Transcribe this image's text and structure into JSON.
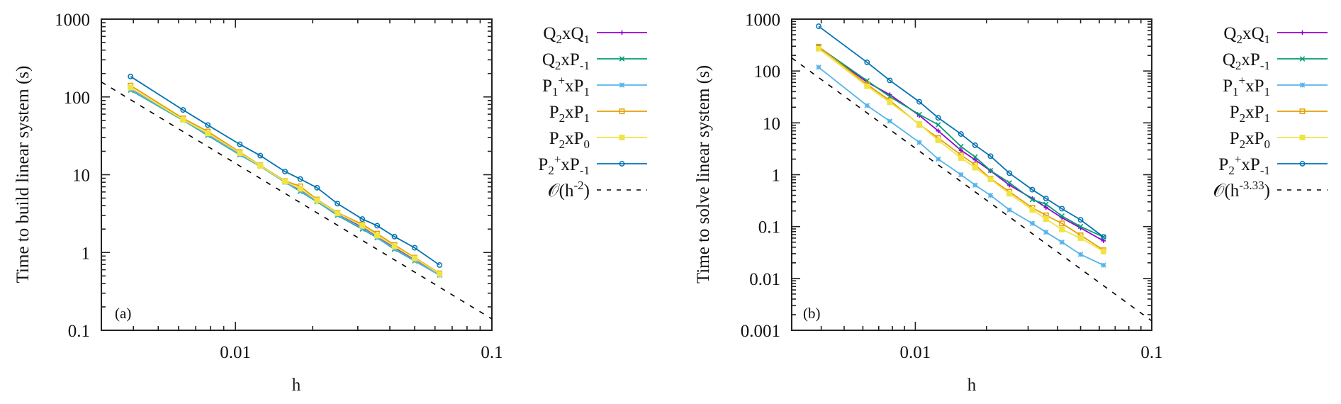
{
  "chart_data": [
    {
      "type": "line",
      "panel_tag": "(a)",
      "title": "",
      "xlabel": "h",
      "ylabel": "Time to build linear system (s)",
      "xscale": "log",
      "yscale": "log",
      "xlim": [
        0.003,
        0.1
      ],
      "ylim": [
        0.1,
        1000
      ],
      "x_ticks": [
        {
          "value": 0.01,
          "label": "0.01"
        },
        {
          "value": 0.1,
          "label": "0.1"
        }
      ],
      "y_ticks": [
        {
          "value": 0.1,
          "label": "0.1"
        },
        {
          "value": 1,
          "label": "1"
        },
        {
          "value": 10,
          "label": "10"
        },
        {
          "value": 100,
          "label": "100"
        },
        {
          "value": 1000,
          "label": "1000"
        }
      ],
      "grid": false,
      "legend_position": "outside-right",
      "x": [
        0.0039,
        0.00625,
        0.0078,
        0.0104,
        0.0125,
        0.0156,
        0.0179,
        0.0208,
        0.025,
        0.03125,
        0.0357,
        0.0417,
        0.05,
        0.0625
      ],
      "series": [
        {
          "name": "Q2xQ1",
          "label_parts": [
            [
              "Q",
              "n"
            ],
            [
              "2",
              "sub"
            ],
            [
              "xQ",
              "n"
            ],
            [
              "1",
              "sub"
            ]
          ],
          "color": "#9400d3",
          "marker": "plus",
          "values": [
            125,
            51,
            33,
            18.5,
            13,
            8.1,
            6.3,
            4.6,
            3.1,
            2.1,
            1.6,
            1.15,
            0.8,
            0.52
          ]
        },
        {
          "name": "Q2xP-1",
          "label_parts": [
            [
              "Q",
              "n"
            ],
            [
              "2",
              "sub"
            ],
            [
              "xP",
              "n"
            ],
            [
              "-1",
              "sub"
            ]
          ],
          "color": "#009e73",
          "marker": "cross",
          "values": [
            122,
            50,
            32,
            18,
            12.8,
            8.0,
            6.1,
            4.5,
            3.0,
            2.0,
            1.55,
            1.1,
            0.78,
            0.51
          ]
        },
        {
          "name": "P1+xP1",
          "label_parts": [
            [
              "P",
              "n"
            ],
            [
              "1",
              "sub"
            ],
            [
              "+",
              "sup"
            ],
            [
              "xP",
              "n"
            ],
            [
              "1",
              "sub"
            ]
          ],
          "color": "#56b4e9",
          "marker": "star",
          "values": [
            124,
            50.5,
            32.5,
            18.2,
            12.9,
            8.0,
            6.2,
            4.55,
            3.05,
            2.05,
            1.57,
            1.12,
            0.79,
            0.51
          ]
        },
        {
          "name": "P2xP1",
          "label_parts": [
            [
              "P",
              "n"
            ],
            [
              "2",
              "sub"
            ],
            [
              "xP",
              "n"
            ],
            [
              "1",
              "sub"
            ]
          ],
          "color": "#e69f00",
          "marker": "square-open",
          "values": [
            140,
            53,
            36,
            19.5,
            13.2,
            8.3,
            7.1,
            4.8,
            3.25,
            2.3,
            1.75,
            1.25,
            0.86,
            0.54
          ]
        },
        {
          "name": "P2xP0",
          "label_parts": [
            [
              "P",
              "n"
            ],
            [
              "2",
              "sub"
            ],
            [
              "xP",
              "n"
            ],
            [
              "0",
              "sub"
            ]
          ],
          "color": "#f0e442",
          "marker": "square-filled",
          "values": [
            132,
            51,
            34,
            19,
            13,
            8.2,
            6.6,
            4.7,
            3.2,
            2.2,
            1.65,
            1.2,
            0.84,
            0.53
          ]
        },
        {
          "name": "P2+xP-1",
          "label_parts": [
            [
              "P",
              "n"
            ],
            [
              "2",
              "sub"
            ],
            [
              "+",
              "sup"
            ],
            [
              "xP",
              "n"
            ],
            [
              "-1",
              "sub"
            ]
          ],
          "color": "#0072b2",
          "marker": "circle-open",
          "values": [
            183,
            68,
            43.5,
            24.6,
            17.6,
            11.0,
            8.8,
            6.8,
            4.25,
            2.69,
            2.21,
            1.6,
            1.15,
            0.69
          ]
        }
      ],
      "reference": {
        "name": "O(h^-2)",
        "label_parts": [
          [
            "𝒪",
            "n"
          ],
          [
            "(h",
            "n"
          ],
          [
            "-2",
            "sup"
          ],
          [
            ")",
            "n"
          ]
        ],
        "exponent": -2,
        "coefficient": 0.0014,
        "color": "#000000",
        "style": "dashed"
      }
    },
    {
      "type": "line",
      "panel_tag": "(b)",
      "title": "",
      "xlabel": "h",
      "ylabel": "Time to solve linear system (s)",
      "xscale": "log",
      "yscale": "log",
      "xlim": [
        0.003,
        0.1
      ],
      "ylim": [
        0.001,
        1000
      ],
      "x_ticks": [
        {
          "value": 0.01,
          "label": "0.01"
        },
        {
          "value": 0.1,
          "label": "0.1"
        }
      ],
      "y_ticks": [
        {
          "value": 0.001,
          "label": "0.001"
        },
        {
          "value": 0.01,
          "label": "0.01"
        },
        {
          "value": 0.1,
          "label": "0.1"
        },
        {
          "value": 1,
          "label": "1"
        },
        {
          "value": 10,
          "label": "10"
        },
        {
          "value": 100,
          "label": "100"
        },
        {
          "value": 1000,
          "label": "1000"
        }
      ],
      "grid": false,
      "legend_position": "outside-right",
      "x": [
        0.0039,
        0.00625,
        0.0078,
        0.0104,
        0.0125,
        0.0156,
        0.0179,
        0.0208,
        0.025,
        0.03125,
        0.0357,
        0.0417,
        0.05,
        0.0625
      ],
      "series": [
        {
          "name": "Q2xQ1",
          "label_parts": [
            [
              "Q",
              "n"
            ],
            [
              "2",
              "sub"
            ],
            [
              "xQ",
              "n"
            ],
            [
              "1",
              "sub"
            ]
          ],
          "color": "#9400d3",
          "marker": "plus",
          "values": [
            288,
            61,
            35,
            13.9,
            7.0,
            2.96,
            1.94,
            1.19,
            0.63,
            0.348,
            0.234,
            0.148,
            0.094,
            0.053
          ]
        },
        {
          "name": "Q2xP-1",
          "label_parts": [
            [
              "Q",
              "n"
            ],
            [
              "2",
              "sub"
            ],
            [
              "xP",
              "n"
            ],
            [
              "-1",
              "sub"
            ]
          ],
          "color": "#009e73",
          "marker": "cross",
          "values": [
            290,
            65,
            32,
            14.5,
            9.2,
            3.5,
            2.2,
            1.2,
            0.7,
            0.33,
            0.27,
            0.16,
            0.1,
            0.063
          ]
        },
        {
          "name": "P1+xP1",
          "label_parts": [
            [
              "P",
              "n"
            ],
            [
              "1",
              "sub"
            ],
            [
              "+",
              "sup"
            ],
            [
              "xP",
              "n"
            ],
            [
              "1",
              "sub"
            ]
          ],
          "color": "#56b4e9",
          "marker": "star",
          "values": [
            118,
            21.5,
            10.8,
            4.2,
            2.0,
            1.0,
            0.63,
            0.4,
            0.21,
            0.115,
            0.078,
            0.05,
            0.029,
            0.018
          ]
        },
        {
          "name": "P2xP1",
          "label_parts": [
            [
              "P",
              "n"
            ],
            [
              "2",
              "sub"
            ],
            [
              "xP",
              "n"
            ],
            [
              "1",
              "sub"
            ]
          ],
          "color": "#e69f00",
          "marker": "square-open",
          "values": [
            295,
            55,
            27,
            9.3,
            5.1,
            2.4,
            1.55,
            0.84,
            0.47,
            0.23,
            0.165,
            0.115,
            0.068,
            0.035
          ]
        },
        {
          "name": "P2xP0",
          "label_parts": [
            [
              "P",
              "n"
            ],
            [
              "2",
              "sub"
            ],
            [
              "xP",
              "n"
            ],
            [
              "0",
              "sub"
            ]
          ],
          "color": "#f0e442",
          "marker": "square-filled",
          "values": [
            270,
            51,
            25,
            9.5,
            4.6,
            2.1,
            1.37,
            0.82,
            0.43,
            0.21,
            0.14,
            0.088,
            0.06,
            0.033
          ]
        },
        {
          "name": "P2+xP-1",
          "label_parts": [
            [
              "P",
              "n"
            ],
            [
              "2",
              "sub"
            ],
            [
              "+",
              "sup"
            ],
            [
              "xP",
              "n"
            ],
            [
              "-1",
              "sub"
            ]
          ],
          "color": "#0072b2",
          "marker": "circle-open",
          "values": [
            728,
            147,
            65.8,
            25.5,
            12.5,
            6.1,
            3.7,
            2.28,
            1.07,
            0.515,
            0.348,
            0.221,
            0.135,
            0.063
          ]
        }
      ],
      "reference": {
        "name": "O(h^-3.33)",
        "label_parts": [
          [
            "𝒪",
            "n"
          ],
          [
            "(h",
            "n"
          ],
          [
            "-3.33",
            "sup"
          ],
          [
            ")",
            "n"
          ]
        ],
        "exponent": -3.33,
        "coefficient": 7.1e-07,
        "color": "#000000",
        "style": "dashed"
      }
    }
  ]
}
